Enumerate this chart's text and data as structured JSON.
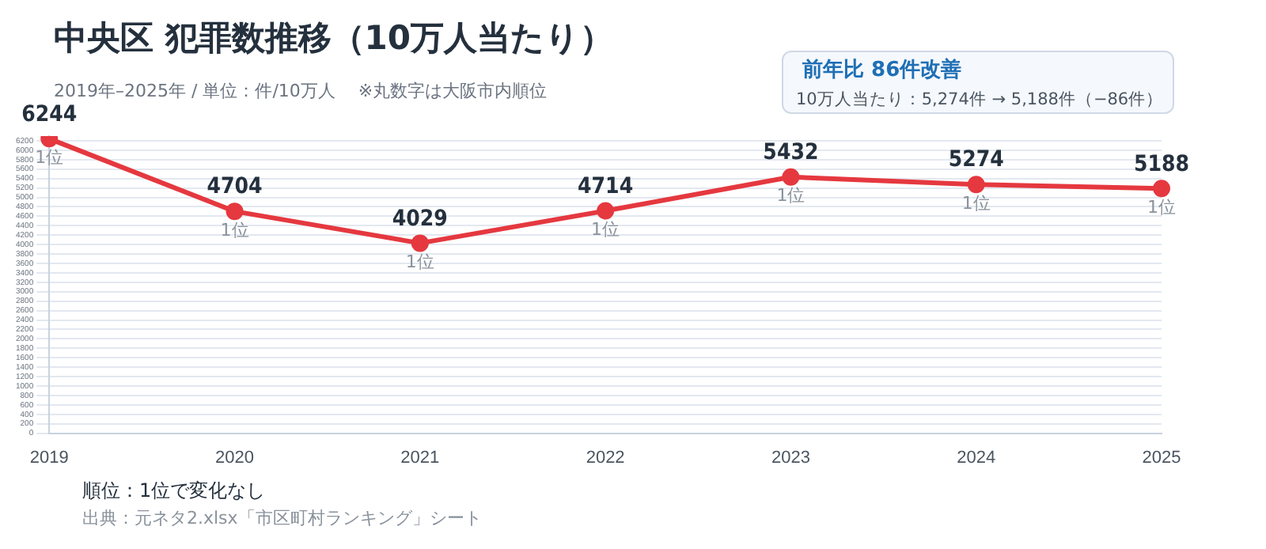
{
  "chart_data": {
    "type": "line",
    "title": "中央区  犯罪数推移（10万人当たり）",
    "subtitle": "2019年–2025年 / 単位：件/10万人　 ※丸数字は大阪市内順位",
    "categories": [
      "2019",
      "2020",
      "2021",
      "2022",
      "2023",
      "2024",
      "2025"
    ],
    "series": [
      {
        "color": "#e5383f",
        "values": [
          6244,
          4704,
          4029,
          4714,
          5432,
          5274,
          5188
        ]
      }
    ],
    "ylim": [
      0,
      6300
    ],
    "yticks": [
      0,
      200,
      400,
      600,
      800,
      1000,
      1200,
      1400,
      1600,
      1800,
      2000,
      2200,
      2400,
      2600,
      2800,
      3000,
      3200,
      3400,
      3600,
      3800,
      4000,
      4200,
      4400,
      4600,
      4800,
      5000,
      5200,
      5400,
      5600,
      5800,
      6000,
      6200
    ],
    "grid": "y",
    "marker": "circle",
    "line_style": "solid",
    "data_labels": true,
    "annotations": [
      {
        "text": "1位",
        "x": "2019",
        "y": 6244
      },
      {
        "text": "1位",
        "x": "2020",
        "y": 4704
      },
      {
        "text": "1位",
        "x": "2021",
        "y": 4029
      },
      {
        "text": "1位",
        "x": "2022",
        "y": 4714
      },
      {
        "text": "1位",
        "x": "2023",
        "y": 5432
      },
      {
        "text": "1位",
        "x": "2024",
        "y": 5274
      },
      {
        "text": "1位",
        "x": "2025",
        "y": 5188
      },
      "前年比  86件改善",
      "10万人当たり：5,274件 → 5,188件（−86件）",
      "順位：1位で変化なし",
      "出典：元ネタ2.xlsx「市区町村ランキング」シート"
    ]
  }
}
